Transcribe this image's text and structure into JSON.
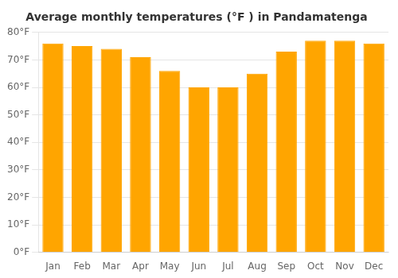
{
  "chart_data": {
    "type": "bar",
    "title": "Average monthly temperatures (°F ) in Pandamatenga",
    "categories": [
      "Jan",
      "Feb",
      "Mar",
      "Apr",
      "May",
      "Jun",
      "Jul",
      "Aug",
      "Sep",
      "Oct",
      "Nov",
      "Dec"
    ],
    "values": [
      76,
      75,
      74,
      71,
      66,
      60,
      60,
      65,
      73,
      77,
      77,
      76
    ],
    "color": "#FFA500",
    "ylim": [
      0,
      80
    ],
    "yticks": [
      {
        "value": 0,
        "label": "0°F"
      },
      {
        "value": 10,
        "label": "10°F"
      },
      {
        "value": 20,
        "label": "20°F"
      },
      {
        "value": 30,
        "label": "30°F"
      },
      {
        "value": 40,
        "label": "40°F"
      },
      {
        "value": 50,
        "label": "50°F"
      },
      {
        "value": 60,
        "label": "60°F"
      },
      {
        "value": 70,
        "label": "70°F"
      },
      {
        "value": 80,
        "label": "80°F"
      }
    ],
    "grid": true
  }
}
